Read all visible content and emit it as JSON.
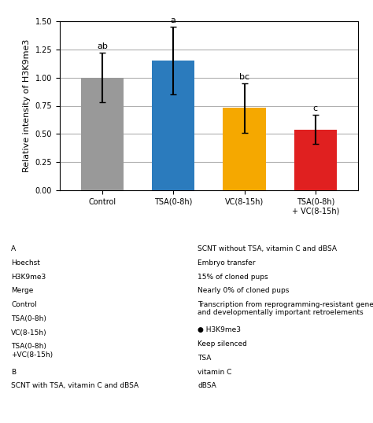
{
  "chart_data": {
    "type": "bar",
    "categories": [
      "Control",
      "TSA(0-8h)",
      "VC(8-15h)",
      "TSA(0-8h)\n+ VC(8-15h)"
    ],
    "values": [
      1.0,
      1.15,
      0.73,
      0.54
    ],
    "errors": [
      0.22,
      0.3,
      0.22,
      0.13
    ],
    "bar_labels": [
      "ab",
      "a",
      "bc",
      "c"
    ],
    "colors": [
      "#999999",
      "#2b7bbd",
      "#f5a800",
      "#e02020"
    ],
    "ylabel": "Relative intensity of H3K9me3",
    "ylim": [
      0,
      1.5
    ],
    "yticks": [
      {
        "value": 0,
        "label": "0.00"
      },
      {
        "value": 0.25,
        "label": "0.25"
      },
      {
        "value": 0.5,
        "label": "0.50"
      },
      {
        "value": 0.75,
        "label": "0.75"
      },
      {
        "value": 1.0,
        "label": "1.00"
      },
      {
        "value": 1.25,
        "label": "1.25"
      },
      {
        "value": 1.5,
        "label": "1.50"
      }
    ],
    "grid": true,
    "annotations": [
      "A",
      "Hoechst",
      "H3K9me3",
      "Merge",
      "Control",
      "TSA(0-8h)",
      "VC(8-15h)",
      "TSA(0-8h)\n+VC(8-15h)",
      "B",
      "SCNT with TSA, vitamin C and dBSA",
      "SCNT without TSA, vitamin C and dBSA",
      "Embryo transfer",
      "15% of cloned pups",
      "Nearly 0% of cloned pups",
      "Transcription from reprogramming‑resistant genes\nand developmentally important retroelements",
      "● H3K9me3",
      "Keep silenced",
      "TSA",
      "vitamin C",
      "dBSA"
    ]
  }
}
